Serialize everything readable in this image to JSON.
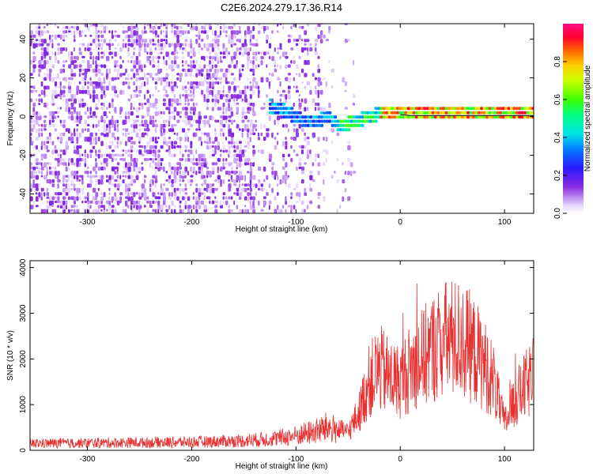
{
  "title": "C2E6.2024.279.17.36.R14",
  "chart_data": [
    {
      "type": "heatmap",
      "xlabel": "Height of straight line (km)",
      "ylabel": "Frequency (Hz)",
      "xlim": [
        -355,
        128
      ],
      "ylim": [
        -50,
        48
      ],
      "x_ticks": [
        -300,
        -200,
        -100,
        0,
        100
      ],
      "x_tick_labels": [
        "-300",
        "-200",
        "-100",
        "0",
        "100"
      ],
      "y_ticks": [
        -40,
        -20,
        0,
        20,
        40
      ],
      "y_tick_labels": [
        "-40",
        "-20",
        "0",
        "20",
        "40"
      ],
      "colorbar": {
        "label": "Normalized spectral amplitude",
        "range": [
          0,
          1
        ],
        "ticks": [
          0.0,
          0.2,
          0.4,
          0.6,
          0.8
        ],
        "tick_labels": [
          "0.0",
          "0.2",
          "0.4",
          "0.6",
          "0.8"
        ]
      },
      "line_series": {
        "x": [
          -128,
          -115,
          -100,
          -90,
          -80,
          -70,
          -60,
          -50,
          -40,
          -30,
          -20,
          -10,
          0,
          10,
          30,
          60,
          90,
          100,
          110,
          128
        ],
        "y": [
          4,
          2,
          -2,
          -4,
          -3,
          -2,
          -6,
          -5,
          -3,
          -1,
          0,
          1,
          1,
          0.5,
          0.5,
          0.5,
          0.5,
          0.5,
          0.5,
          0.5
        ]
      }
    },
    {
      "type": "line",
      "xlabel": "Height of straight line (km)",
      "ylabel": "SNR (10 * v/v)",
      "xlim": [
        -355,
        128
      ],
      "ylim": [
        0,
        4150
      ],
      "x_ticks": [
        -300,
        -200,
        -100,
        0,
        100
      ],
      "x_tick_labels": [
        "-300",
        "-200",
        "-100",
        "0",
        "100"
      ],
      "y_ticks": [
        0,
        1000,
        2000,
        3000,
        4000
      ],
      "y_tick_labels": [
        "0",
        "1000",
        "2000",
        "3000",
        "4000"
      ],
      "series": [
        {
          "color": "#e83232",
          "x": [
            -355,
            -300,
            -250,
            -200,
            -150,
            -120,
            -100,
            -80,
            -70,
            -60,
            -50,
            -40,
            -30,
            -20,
            -10,
            0,
            10,
            20,
            30,
            40,
            50,
            60,
            70,
            80,
            90,
            95,
            100,
            105,
            110,
            120,
            128
          ],
          "y": [
            150,
            160,
            170,
            180,
            210,
            260,
            320,
            420,
            500,
            450,
            400,
            800,
            1500,
            1800,
            1600,
            1500,
            1800,
            2000,
            2200,
            2400,
            2450,
            2400,
            2200,
            1900,
            1500,
            1000,
            600,
            800,
            1100,
            1400,
            1600
          ]
        }
      ]
    }
  ]
}
